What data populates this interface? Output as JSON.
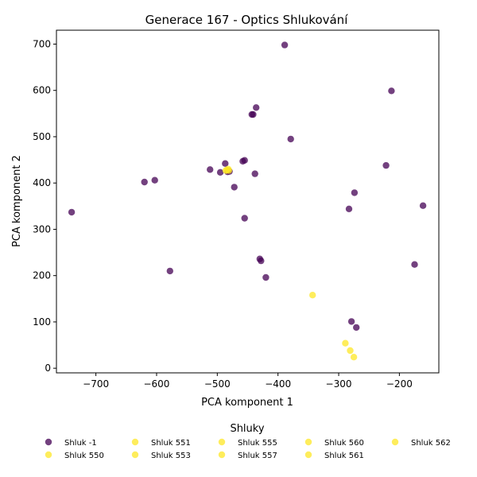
{
  "chart_data": {
    "type": "scatter",
    "title": "Generace 167 - Optics Shlukování",
    "xlabel": "PCA komponent 1",
    "ylabel": "PCA komponent 2",
    "xlim": [
      -765,
      -135
    ],
    "ylim": [
      -10,
      730
    ],
    "xticks": [
      -700,
      -600,
      -500,
      -400,
      -300,
      -200
    ],
    "yticks": [
      0,
      100,
      200,
      300,
      400,
      500,
      600,
      700
    ],
    "grid": false,
    "legend": {
      "title": "Shluky",
      "placement": "bottom",
      "columns": 5
    },
    "series": [
      {
        "name": "Shluk -1",
        "color": "#440154",
        "points": [
          [
            -740,
            337
          ],
          [
            -620,
            402
          ],
          [
            -603,
            406
          ],
          [
            -578,
            210
          ],
          [
            -512,
            429
          ],
          [
            -495,
            423
          ],
          [
            -487,
            442
          ],
          [
            -483,
            424
          ],
          [
            -480,
            425
          ],
          [
            -472,
            391
          ],
          [
            -458,
            447
          ],
          [
            -455,
            449
          ],
          [
            -455,
            324
          ],
          [
            -443,
            548
          ],
          [
            -441,
            548
          ],
          [
            -438,
            420
          ],
          [
            -436,
            563
          ],
          [
            -430,
            236
          ],
          [
            -428,
            232
          ],
          [
            -420,
            196
          ],
          [
            -389,
            698
          ],
          [
            -379,
            495
          ],
          [
            -283,
            344
          ],
          [
            -279,
            101
          ],
          [
            -274,
            379
          ],
          [
            -271,
            88
          ],
          [
            -222,
            438
          ],
          [
            -213,
            599
          ],
          [
            -175,
            224
          ],
          [
            -161,
            351
          ]
        ]
      },
      {
        "name": "Shluk 550",
        "color": "#fde725",
        "points": [
          [
            -343,
            158
          ]
        ]
      },
      {
        "name": "Shluk 551",
        "color": "#fde725",
        "points": [
          [
            -289,
            54
          ]
        ]
      },
      {
        "name": "Shluk 553",
        "color": "#fde725",
        "points": [
          [
            -281,
            38
          ]
        ]
      },
      {
        "name": "Shluk 555",
        "color": "#fde725",
        "points": [
          [
            -275,
            24
          ]
        ]
      },
      {
        "name": "Shluk 557",
        "color": "#fde725",
        "points": [
          [
            -484,
            428
          ]
        ]
      },
      {
        "name": "Shluk 560",
        "color": "#fde725",
        "points": [
          [
            -482,
            430
          ]
        ]
      },
      {
        "name": "Shluk 561",
        "color": "#fde725",
        "points": [
          [
            -486,
            427
          ]
        ]
      },
      {
        "name": "Shluk 562",
        "color": "#fde725",
        "points": [
          [
            -481,
            427
          ]
        ]
      }
    ],
    "legend_order": [
      "Shluk -1",
      "Shluk 550",
      "Shluk 551",
      "Shluk 553",
      "Shluk 555",
      "Shluk 557",
      "Shluk 560",
      "Shluk 561",
      "Shluk 562"
    ]
  }
}
